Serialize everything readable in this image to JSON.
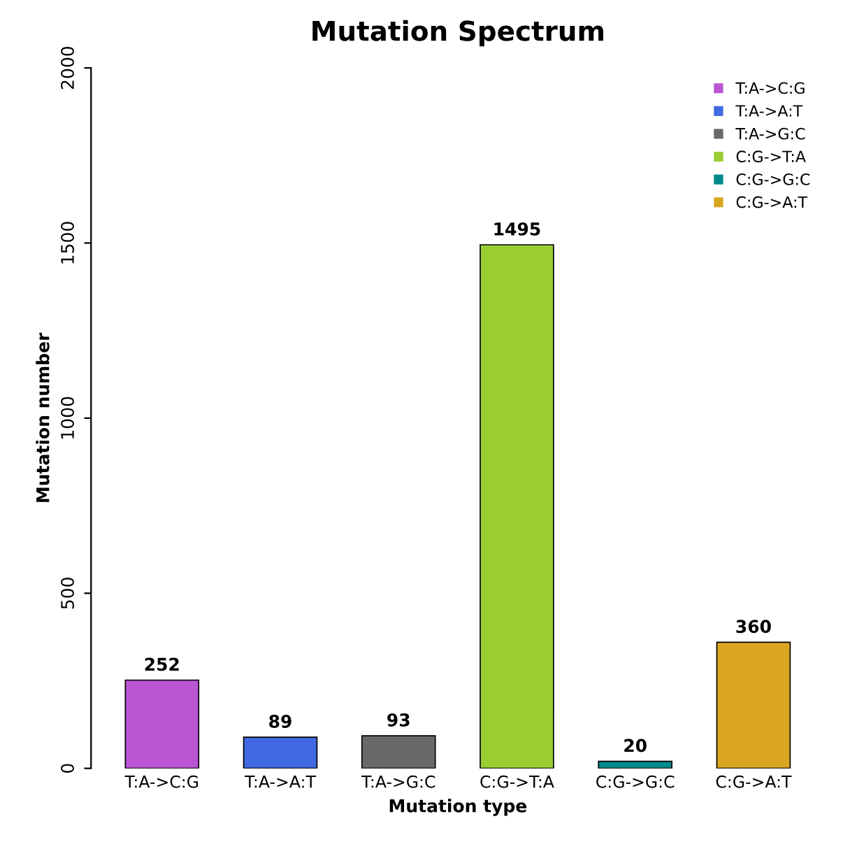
{
  "chart_data": {
    "type": "bar",
    "title": "Mutation Spectrum",
    "xlabel": "Mutation type",
    "ylabel": "Mutation number",
    "categories": [
      "T:A->C:G",
      "T:A->A:T",
      "T:A->G:C",
      "C:G->T:A",
      "C:G->G:C",
      "C:G->A:T"
    ],
    "series": [
      {
        "name": "T:A->C:G",
        "color": "#ba55d3",
        "values": [
          252,
          null,
          null,
          null,
          null,
          null
        ]
      },
      {
        "name": "T:A->A:T",
        "color": "#4169e1",
        "values": [
          null,
          89,
          null,
          null,
          null,
          null
        ]
      },
      {
        "name": "T:A->G:C",
        "color": "#696969",
        "values": [
          null,
          null,
          93,
          null,
          null,
          null
        ]
      },
      {
        "name": "C:G->T:A",
        "color": "#9acd32",
        "values": [
          null,
          null,
          null,
          1495,
          null,
          null
        ]
      },
      {
        "name": "C:G->G:C",
        "color": "#008b8b",
        "values": [
          null,
          null,
          null,
          null,
          20,
          null
        ]
      },
      {
        "name": "C:G->A:T",
        "color": "#daa520",
        "values": [
          null,
          null,
          null,
          null,
          null,
          360
        ]
      }
    ],
    "ylim": [
      0,
      2000
    ],
    "yticks": [
      0,
      500,
      1000,
      1500,
      2000
    ],
    "data_labels": true,
    "legend": "top right"
  }
}
